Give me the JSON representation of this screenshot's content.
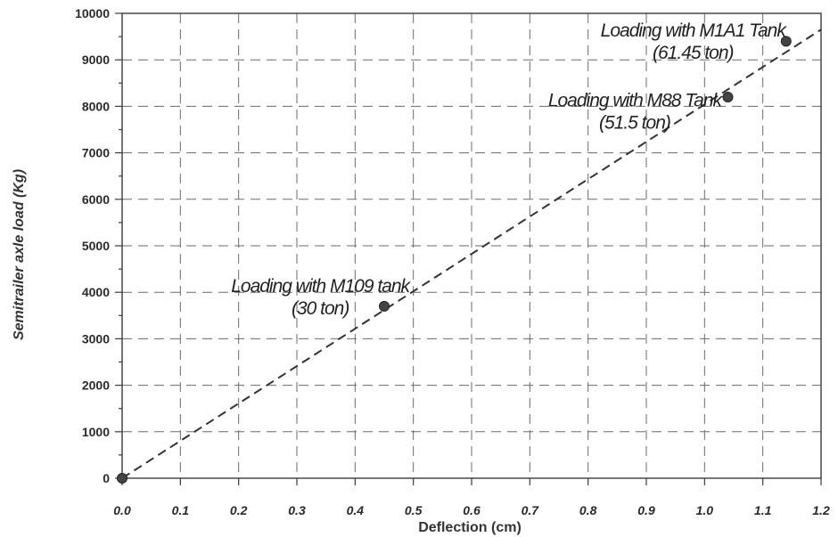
{
  "chart_data": {
    "type": "scatter",
    "xlabel": "Deflection (cm)",
    "ylabel": "Semitrailer axle load (Kg)",
    "xlim": [
      0.0,
      1.2
    ],
    "ylim": [
      0,
      10000
    ],
    "x_ticks": [
      "0.0",
      "0.1",
      "0.2",
      "0.3",
      "0.4",
      "0.5",
      "0.6",
      "0.7",
      "0.8",
      "0.9",
      "1.0",
      "1.1",
      "1.2"
    ],
    "y_ticks": [
      "0",
      "1000",
      "2000",
      "3000",
      "4000",
      "5000",
      "6000",
      "7000",
      "8000",
      "9000",
      "10000"
    ],
    "grid": true,
    "series": [
      {
        "points": [
          {
            "x": 0.0,
            "y": 0
          },
          {
            "x": 0.45,
            "y": 3700
          },
          {
            "x": 1.04,
            "y": 8200
          },
          {
            "x": 1.14,
            "y": 9400
          }
        ]
      }
    ],
    "trendline": {
      "style": "dashed",
      "from": {
        "x": 0.0,
        "y": 0
      },
      "to": {
        "x": 1.2,
        "y": 9650
      }
    },
    "annotations": [
      {
        "lines": [
          "Loading with M109 tank",
          "(30 ton)"
        ],
        "x": 0.34,
        "y": 4000
      },
      {
        "lines": [
          "Loading with M88 Tank",
          "(51.5 ton)"
        ],
        "x": 0.88,
        "y": 8000
      },
      {
        "lines": [
          "Loading with M1A1 Tank",
          "(61.45 ton)"
        ],
        "x": 0.98,
        "y": 9500
      }
    ]
  }
}
